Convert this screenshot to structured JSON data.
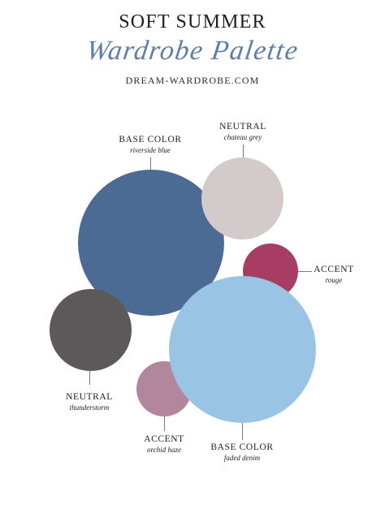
{
  "header": {
    "title": "SOFT SUMMER",
    "subtitle": "Wardrobe Palette",
    "website": "DREAM-WARDROBE.COM"
  },
  "palette": [
    {
      "type": "BASE COLOR",
      "name": "riverside blue",
      "color": "#4b6b94"
    },
    {
      "type": "NEUTRAL",
      "name": "chateau grey",
      "color": "#d3cbcb"
    },
    {
      "type": "ACCENT",
      "name": "rouge",
      "color": "#a83d64"
    },
    {
      "type": "NEUTRAL",
      "name": "thunderstorm",
      "color": "#5d5859"
    },
    {
      "type": "ACCENT",
      "name": "orchid haze",
      "color": "#b2879e"
    },
    {
      "type": "BASE COLOR",
      "name": "faded denim",
      "color": "#9ac4e4"
    }
  ]
}
